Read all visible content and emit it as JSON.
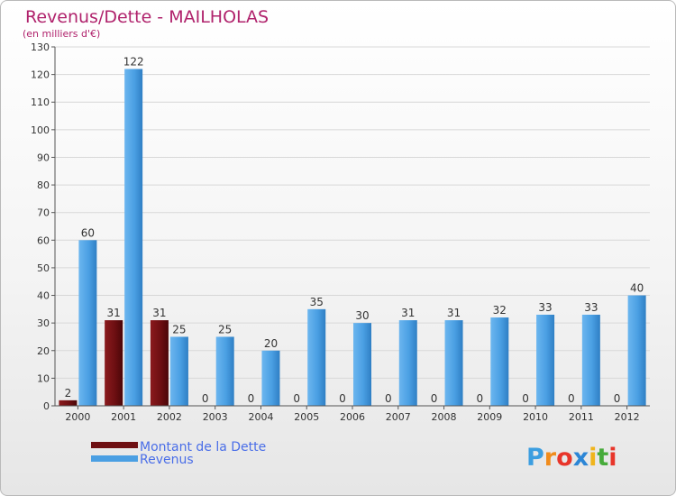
{
  "chart_data": {
    "type": "bar",
    "title": "Revenus/Dette - MAILHOLAS",
    "subtitle": "(en milliers d'€)",
    "categories": [
      "2000",
      "2001",
      "2002",
      "2003",
      "2004",
      "2005",
      "2006",
      "2007",
      "2008",
      "2009",
      "2010",
      "2011",
      "2012"
    ],
    "series": [
      {
        "name": "Montant de la Dette",
        "color": "#6e0f12",
        "values": [
          2,
          31,
          31,
          0,
          0,
          0,
          0,
          0,
          0,
          0,
          0,
          0,
          0
        ]
      },
      {
        "name": "Revenus",
        "color": "#4a9fe3",
        "values": [
          60,
          122,
          25,
          25,
          20,
          35,
          30,
          31,
          31,
          32,
          33,
          33,
          40
        ]
      }
    ],
    "yticks": [
      0,
      10,
      20,
      30,
      40,
      50,
      60,
      70,
      80,
      90,
      100,
      110,
      120,
      130
    ],
    "ylim": [
      0,
      130
    ],
    "grid": true,
    "legend": "bottom-left"
  },
  "logo": {
    "text": "Proxiti",
    "letters": [
      "P",
      "r",
      "o",
      "x",
      "i",
      "t",
      "i"
    ],
    "colors": [
      "#3c9ee0",
      "#f08c1c",
      "#e8352a",
      "#2c86d6",
      "#f0b41c",
      "#47ab3b",
      "#e8352a"
    ]
  }
}
